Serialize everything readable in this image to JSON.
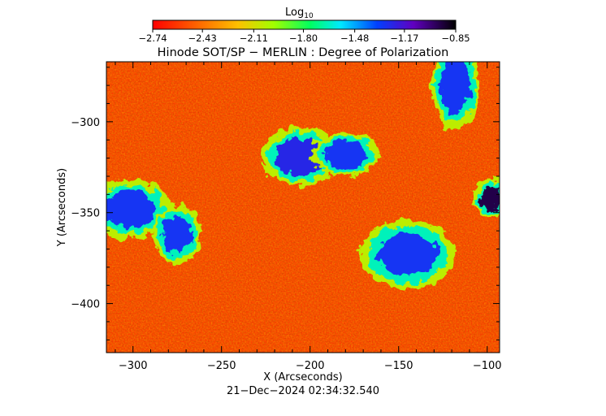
{
  "chart_data": {
    "type": "heatmap",
    "title": "Hinode SOT/SP − MERLIN : Degree of Polarization",
    "xlabel": "X (Arcseconds)",
    "ylabel": "Y (Arcseconds)",
    "footer": "21−Dec−2024 02:34:32.540",
    "colorbar": {
      "label_main": "Log",
      "label_sub": "10",
      "scale": "log10",
      "range": [
        -2.74,
        -0.85
      ],
      "tick_values": [
        -2.74,
        -2.43,
        -2.11,
        -1.8,
        -1.48,
        -1.17,
        -0.85
      ],
      "tick_labels": [
        "−2.74",
        "−2.43",
        "−2.11",
        "−1.80",
        "−1.48",
        "−1.17",
        "−0.85"
      ],
      "colormap": "rainbow (red → orange → yellow → green → cyan → blue → violet → black)"
    },
    "xlim": [
      -315,
      -93
    ],
    "ylim": [
      -427,
      -267
    ],
    "xticks": [
      -300,
      -250,
      -200,
      -150,
      -100
    ],
    "xtick_labels": [
      "−300",
      "−250",
      "−200",
      "−150",
      "−100"
    ],
    "yticks": [
      -300,
      -350,
      -400
    ],
    "ytick_labels": [
      "−300",
      "−350",
      "−400"
    ],
    "grid": false,
    "background_level": -2.6,
    "high_polarization_regions": [
      {
        "x": -302,
        "y": -348,
        "rx": 17,
        "ry": 12,
        "level": -1.3
      },
      {
        "x": -275,
        "y": -362,
        "rx": 10,
        "ry": 12,
        "level": -1.3
      },
      {
        "x": -205,
        "y": -319,
        "rx": 17,
        "ry": 12,
        "level": -1.25
      },
      {
        "x": -180,
        "y": -318,
        "rx": 14,
        "ry": 9,
        "level": -1.3
      },
      {
        "x": -145,
        "y": -373,
        "rx": 20,
        "ry": 14,
        "level": -1.3
      },
      {
        "x": -118,
        "y": -280,
        "rx": 10,
        "ry": 18,
        "level": -1.3
      },
      {
        "x": -98,
        "y": -342,
        "rx": 7,
        "ry": 8,
        "level": -0.95
      }
    ]
  }
}
